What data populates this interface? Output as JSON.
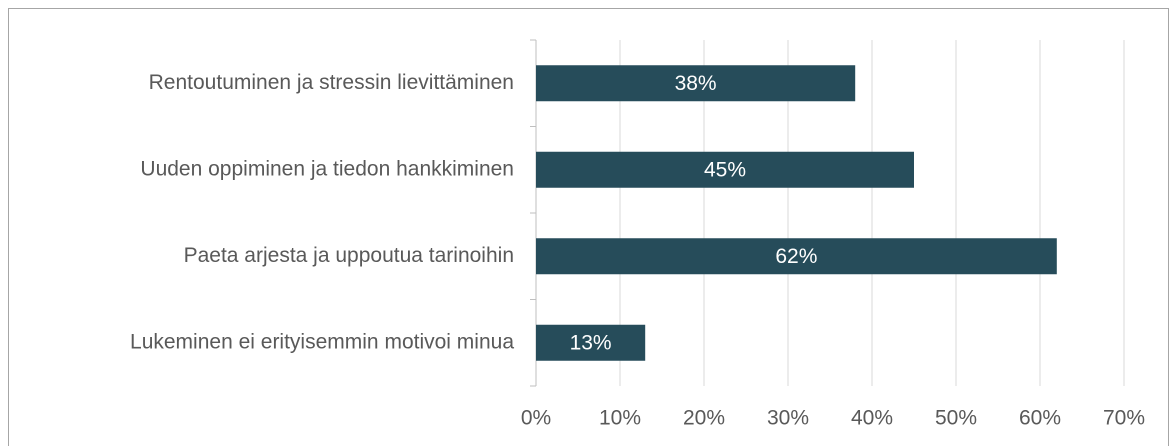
{
  "chart_data": {
    "type": "barh",
    "categories": [
      "Rentoutuminen ja stressin lievittäminen",
      "Uuden oppiminen ja tiedon hankkiminen",
      "Paeta arjesta ja uppoutua tarinoihin",
      "Lukeminen ei erityisemmin motivoi minua"
    ],
    "values": [
      38,
      45,
      62,
      13
    ],
    "value_labels": [
      "38%",
      "45%",
      "62%",
      "13%"
    ],
    "color": "#264c5a",
    "xlim": [
      0,
      70
    ],
    "xticks": [
      {
        "value": 0,
        "label": "0%"
      },
      {
        "value": 10,
        "label": "10%"
      },
      {
        "value": 20,
        "label": "20%"
      },
      {
        "value": 30,
        "label": "30%"
      },
      {
        "value": 40,
        "label": "40%"
      },
      {
        "value": 50,
        "label": "50%"
      },
      {
        "value": 60,
        "label": "60%"
      },
      {
        "value": 70,
        "label": "70%"
      }
    ],
    "grid": true
  }
}
